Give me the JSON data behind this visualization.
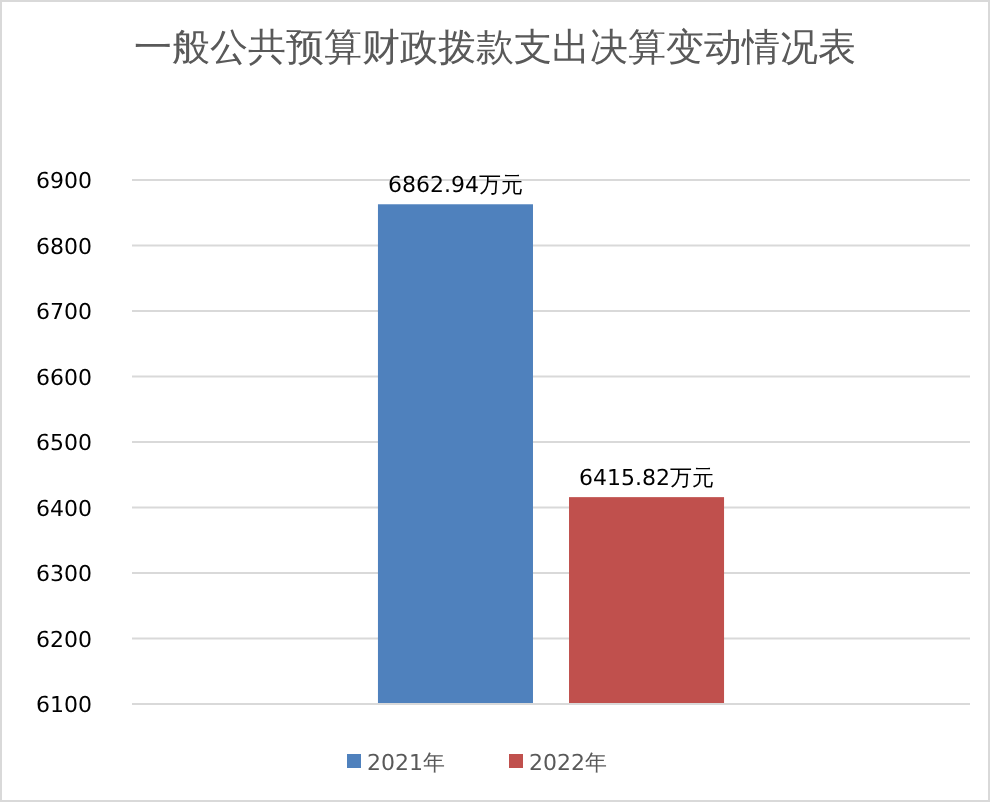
{
  "chart_data": {
    "type": "bar",
    "title": "一般公共预算财政拨款支出决算变动情况表",
    "categories": [
      null
    ],
    "series": [
      {
        "name": "2021年",
        "color": "#4f81bd",
        "values": [
          6862.94
        ],
        "value_labels": [
          "6862.94万元"
        ]
      },
      {
        "name": "2022年",
        "color": "#c0504d",
        "values": [
          6415.82
        ],
        "value_labels": [
          "6415.82万元"
        ]
      }
    ],
    "ylim": [
      6100,
      6900
    ],
    "yticks": [
      6100,
      6200,
      6300,
      6400,
      6500,
      6600,
      6700,
      6800,
      6900
    ],
    "grid": "y",
    "legend": "bottom"
  }
}
